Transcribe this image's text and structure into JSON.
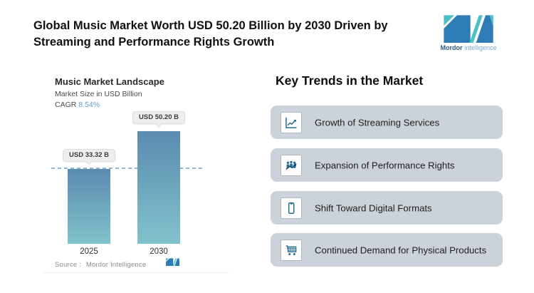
{
  "colors": {
    "accent_blue": "#2e7cb5",
    "accent_teal": "#4cc0c9",
    "bar_gradient_top": "#5b8bb0",
    "bar_gradient_bottom": "#80c2cb",
    "dashed_line": "#93b8d8",
    "cagr_value_blue": "#5b9bd5",
    "trend_card_bg": "#ccd2d9",
    "trend_icon_blue": "#256b96"
  },
  "header": {
    "title_line1": "Global Music Market Worth USD 50.20 Billion by 2030 Driven by",
    "title_line2": "Streaming and Performance Rights Growth",
    "brand": {
      "name_bold": "Mordor",
      "name_light": "Intelligence"
    }
  },
  "chart": {
    "title": "Music Market Landscape",
    "subtitle": "Market Size in USD Billion",
    "cagr_label": "CAGR",
    "cagr_value": "8.54%",
    "source_label": "Source :",
    "source_value": "Mordor Intelligence"
  },
  "chart_data": {
    "type": "bar",
    "title": "Music Market Landscape",
    "ylabel": "Market Size in USD Billion",
    "unit": "USD Billion",
    "cagr_percent": 8.54,
    "categories": [
      "2025",
      "2030"
    ],
    "values": [
      33.32,
      50.2
    ],
    "bar_labels": [
      "USD 33.32 B",
      "USD 50.20 B"
    ],
    "ylim": [
      0,
      58
    ],
    "reference_line": 33.32,
    "grid": false,
    "legend": false,
    "source": "Mordor Intelligence"
  },
  "trends": {
    "heading": "Key Trends in the Market",
    "items": [
      {
        "icon": "line-chart-icon",
        "label": "Growth of Streaming Services"
      },
      {
        "icon": "audience-trend-icon",
        "label": "Expansion of Performance Rights"
      },
      {
        "icon": "smartphone-icon",
        "label": "Shift Toward Digital Formats"
      },
      {
        "icon": "shopping-cart-icon",
        "label": "Continued Demand for Physical Products"
      }
    ]
  }
}
